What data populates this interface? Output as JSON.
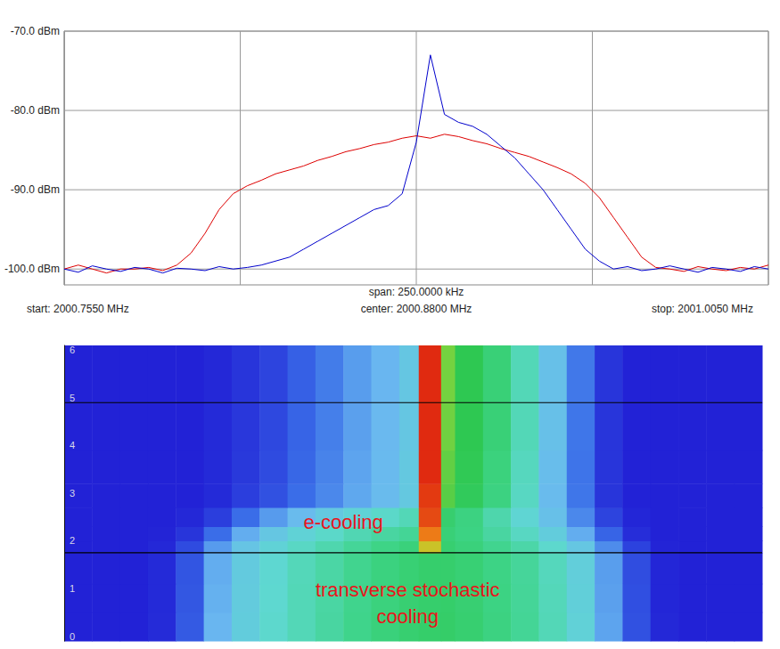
{
  "chart_data": [
    {
      "type": "line",
      "x": [
        2000.755,
        2000.76,
        2000.765,
        2000.77,
        2000.775,
        2000.78,
        2000.785,
        2000.79,
        2000.795,
        2000.8,
        2000.805,
        2000.81,
        2000.815,
        2000.82,
        2000.825,
        2000.83,
        2000.835,
        2000.84,
        2000.845,
        2000.85,
        2000.855,
        2000.86,
        2000.865,
        2000.87,
        2000.875,
        2000.88,
        2000.885,
        2000.89,
        2000.895,
        2000.9,
        2000.905,
        2000.91,
        2000.915,
        2000.92,
        2000.925,
        2000.93,
        2000.935,
        2000.94,
        2000.945,
        2000.95,
        2000.955,
        2000.96,
        2000.965,
        2000.97,
        2000.975,
        2000.98,
        2000.985,
        2000.99,
        2000.995,
        2001,
        2001.005
      ],
      "series": [
        {
          "color": "#dd0000",
          "values": [
            -100,
            -99.5,
            -100,
            -100.5,
            -100,
            -100,
            -99.8,
            -100.2,
            -99.5,
            -98,
            -95.5,
            -92.5,
            -90.5,
            -89.5,
            -88.8,
            -88,
            -87.5,
            -87,
            -86.3,
            -85.8,
            -85.2,
            -84.8,
            -84.3,
            -84,
            -83.5,
            -83.2,
            -83.5,
            -83,
            -83.3,
            -83.8,
            -84.2,
            -84.8,
            -85.3,
            -85.8,
            -86.5,
            -87.2,
            -88,
            -89.2,
            -91,
            -93.5,
            -96,
            -98.5,
            -99.8,
            -100,
            -100.3,
            -99.7,
            -100,
            -100.2,
            -99.8,
            -100,
            -99.5
          ]
        },
        {
          "color": "#0000cc",
          "values": [
            -100,
            -100.4,
            -99.6,
            -100,
            -100.3,
            -99.8,
            -100,
            -100.5,
            -99.9,
            -100,
            -100.2,
            -99.7,
            -100,
            -99.8,
            -99.5,
            -99,
            -98.5,
            -97.5,
            -96.5,
            -95.5,
            -94.5,
            -93.5,
            -92.5,
            -92,
            -90.5,
            -84,
            -73,
            -80.5,
            -81.5,
            -82,
            -83,
            -84.5,
            -86,
            -88,
            -90,
            -92.5,
            -95,
            -97.5,
            -99,
            -100,
            -99.7,
            -100.2,
            -100,
            -99.6,
            -100,
            -100.4,
            -99.8,
            -100,
            -100.3,
            -99.7,
            -100
          ]
        }
      ],
      "xlim": [
        2000.755,
        2001.005
      ],
      "xticks": [
        2000.755,
        2000.8175,
        2000.88,
        2000.9425,
        2001.005
      ],
      "ylim": [
        -102,
        -70
      ],
      "yticks": [
        {
          "value": -70,
          "label": "-70.0 dBm"
        },
        {
          "value": -80,
          "label": "-80.0 dBm"
        },
        {
          "value": -90,
          "label": "-90.0 dBm"
        },
        {
          "value": -100,
          "label": "-100.0 dBm"
        }
      ],
      "grid": true,
      "tick_labels": "y",
      "annotations": [
        {
          "text": "start: 2000.7550 MHz"
        },
        {
          "text": "span: 250.0000 kHz"
        },
        {
          "text": "center: 2000.8800 MHz"
        },
        {
          "text": "stop: 2001.0050 MHz"
        }
      ]
    },
    {
      "type": "heatmap",
      "x_edges": [
        2000.755,
        2000.765,
        2000.775,
        2000.785,
        2000.795,
        2000.805,
        2000.815,
        2000.825,
        2000.835,
        2000.845,
        2000.855,
        2000.865,
        2000.875,
        2000.882,
        2000.89,
        2000.895,
        2000.905,
        2000.915,
        2000.925,
        2000.935,
        2000.945,
        2000.955,
        2000.965,
        2000.975,
        2000.985,
        2000.995,
        2001.005
      ],
      "y_edges": [
        0,
        0.6,
        1.2,
        1.85,
        2.1,
        2.4,
        2.8,
        3.3,
        4,
        5,
        6.2
      ],
      "cells": [
        [
          -100,
          -100,
          -100,
          -99.5,
          -97,
          -92,
          -89.5,
          -88,
          -87,
          -86,
          -85,
          -84.2,
          -83.6,
          -83.3,
          -83.2,
          -83.6,
          -84.5,
          -85.5,
          -87,
          -89,
          -93,
          -97.5,
          -99.7,
          -100,
          -100,
          -100
        ],
        [
          -100,
          -100,
          -100,
          -99.6,
          -97.2,
          -92.3,
          -89.6,
          -88.1,
          -87,
          -86.1,
          -85.1,
          -84.3,
          -83.7,
          -83.4,
          -83.3,
          -83.7,
          -84.6,
          -85.6,
          -87.1,
          -89.2,
          -93.2,
          -97.6,
          -99.8,
          -100,
          -100,
          -100
        ],
        [
          -100,
          -100,
          -100,
          -99.6,
          -97.3,
          -92.5,
          -89.8,
          -88.2,
          -87.1,
          -86.2,
          -85.2,
          -84.4,
          -83.8,
          -83.4,
          -83.4,
          -83.8,
          -84.7,
          -85.7,
          -87.2,
          -89.3,
          -93.3,
          -97.7,
          -99.8,
          -100,
          -100,
          -100
        ],
        [
          -100,
          -100,
          -100,
          -99.7,
          -97.8,
          -93.5,
          -90.5,
          -88.8,
          -87.6,
          -86.6,
          -85.6,
          -84.8,
          -84.2,
          -78,
          -83.6,
          -84.2,
          -85.2,
          -86.3,
          -88,
          -90.2,
          -94.3,
          -98.3,
          -99.9,
          -100,
          -100,
          -100
        ],
        [
          -100,
          -100,
          -100,
          -99.9,
          -99,
          -96,
          -92.5,
          -90.2,
          -88.8,
          -87.8,
          -86.8,
          -86,
          -85.5,
          -75.5,
          -84,
          -84.6,
          -86,
          -87.5,
          -89.5,
          -92.5,
          -96.5,
          -99.4,
          -100,
          -100,
          -100,
          -100
        ],
        [
          -100,
          -100,
          -100,
          -100,
          -99.7,
          -98.5,
          -96,
          -93.5,
          -91.5,
          -90,
          -88.8,
          -87.8,
          -87,
          -74,
          -83.5,
          -84.5,
          -86.5,
          -88.5,
          -91,
          -94.5,
          -98.2,
          -99.8,
          -100,
          -100,
          -100,
          -100
        ],
        [
          -100,
          -100,
          -100,
          -100,
          -100,
          -99.6,
          -98.5,
          -97.5,
          -96,
          -94.5,
          -92.8,
          -91.5,
          -90,
          -73.5,
          -81,
          -82.5,
          -84.5,
          -87.5,
          -91.5,
          -95.5,
          -99,
          -100,
          -100,
          -100,
          -100,
          -100
        ],
        [
          -100,
          -100,
          -100,
          -100,
          -100,
          -99.6,
          -98.8,
          -97.8,
          -96.3,
          -94.8,
          -93,
          -91.7,
          -90,
          -73,
          -80.8,
          -82.2,
          -84.3,
          -87.3,
          -91.3,
          -95.6,
          -99,
          -100,
          -100,
          -100,
          -100,
          -100
        ],
        [
          -100,
          -100,
          -100,
          -100,
          -100,
          -99.6,
          -98.9,
          -98,
          -96.5,
          -95,
          -93.2,
          -91.8,
          -90.2,
          -73,
          -80.5,
          -82,
          -84,
          -87,
          -91,
          -95.5,
          -99,
          -100,
          -100,
          -100,
          -100,
          -100
        ],
        [
          -100,
          -100,
          -100,
          -100,
          -100,
          -99.7,
          -99,
          -98.2,
          -96.7,
          -95.2,
          -93.4,
          -92,
          -90.3,
          -72.8,
          -80.4,
          -82,
          -84,
          -87,
          -91,
          -95.4,
          -99,
          -100,
          -100,
          -100,
          -100,
          -100
        ]
      ],
      "color_range": [
        -100,
        -73
      ],
      "xlim": [
        2000.755,
        2001.005
      ],
      "ylim": [
        0,
        6.2
      ],
      "yticks": [
        0,
        1,
        2,
        3,
        4,
        5,
        6
      ],
      "tick_labels": "y",
      "hlines": [
        1.85,
        5
      ],
      "annotations": [
        {
          "text": "e-cooling",
          "x": 2000.855,
          "y": 2.5,
          "color": "#e8141c"
        },
        {
          "text": "transverse stochastic cooling",
          "x": 2000.878,
          "y": 0.8,
          "color": "#e8141c"
        }
      ]
    }
  ]
}
